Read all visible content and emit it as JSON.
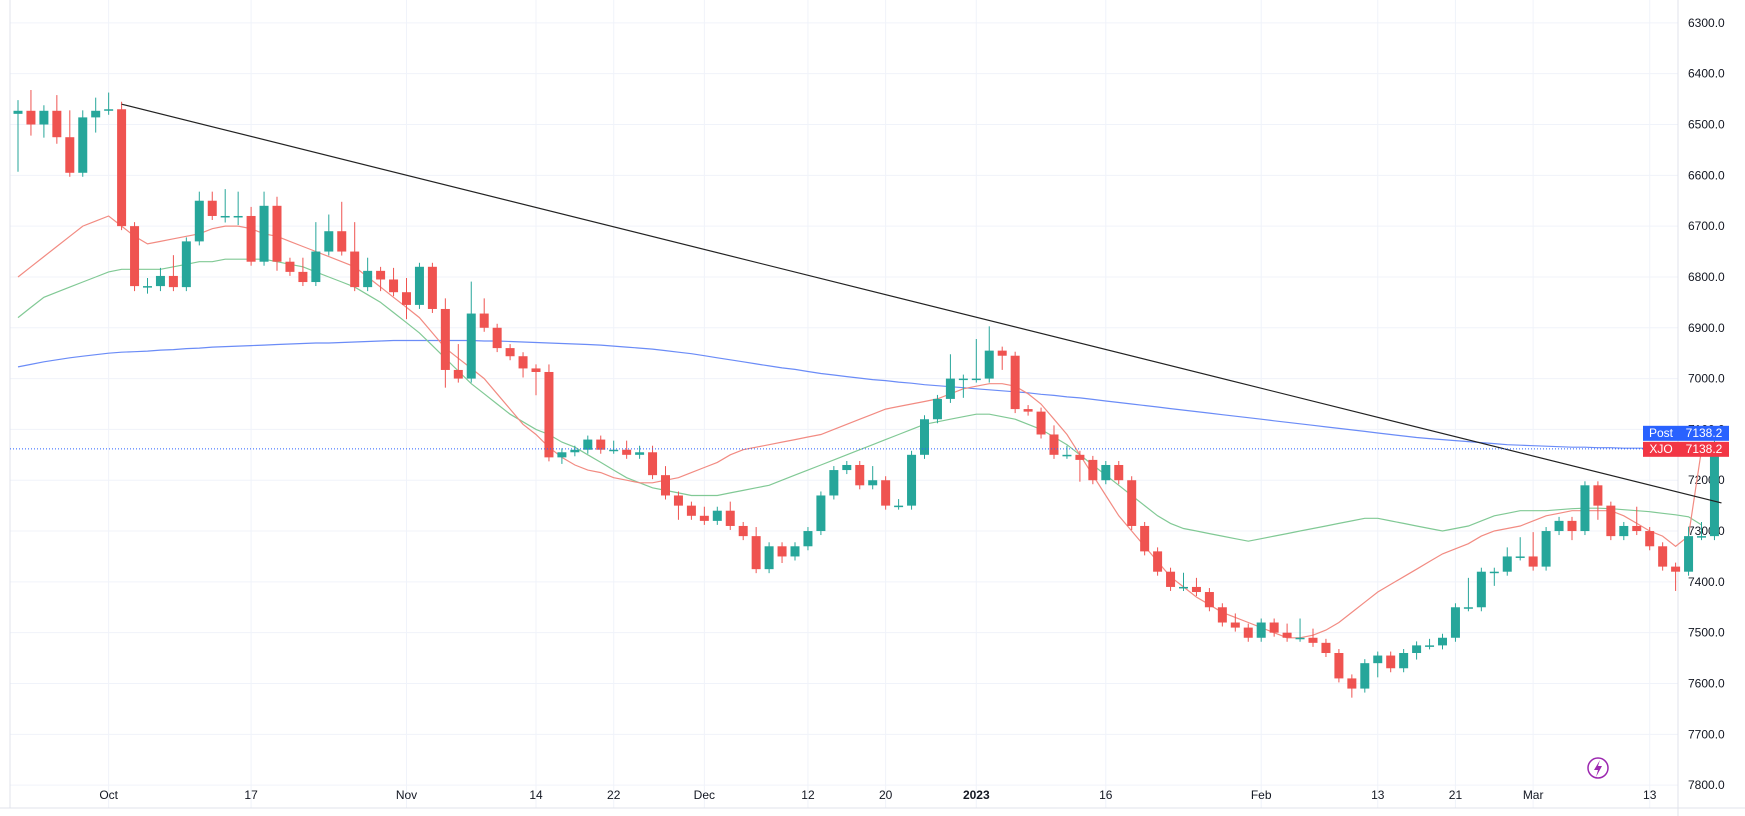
{
  "chart_data": {
    "type": "candlestick",
    "y_axis": {
      "position": "right",
      "inverted": true,
      "range": [
        6255,
        7845
      ],
      "ticks": [
        "6300.0",
        "6400.0",
        "6500.0",
        "6600.0",
        "6700.0",
        "6800.0",
        "6900.0",
        "7000.0",
        "7100.0",
        "7200.0",
        "7300.0",
        "7400.0",
        "7500.0",
        "7600.0",
        "7700.0",
        "7800.0"
      ]
    },
    "x_axis": {
      "ticks": [
        {
          "label": "Oct",
          "index": 7
        },
        {
          "label": "17",
          "index": 18
        },
        {
          "label": "Nov",
          "index": 30
        },
        {
          "label": "14",
          "index": 40
        },
        {
          "label": "22",
          "index": 46
        },
        {
          "label": "Dec",
          "index": 53
        },
        {
          "label": "12",
          "index": 61
        },
        {
          "label": "20",
          "index": 67
        },
        {
          "label": "2023",
          "index": 74,
          "bold": true
        },
        {
          "label": "16",
          "index": 84
        },
        {
          "label": "Feb",
          "index": 96
        },
        {
          "label": "13",
          "index": 105
        },
        {
          "label": "21",
          "index": 111
        },
        {
          "label": "Mar",
          "index": 117
        },
        {
          "label": "13",
          "index": 126
        }
      ]
    },
    "grid": true,
    "colors": {
      "up": "#ef5350",
      "down": "#26a69a",
      "ma_fast": "#f28b82",
      "ma_mid": "#81c995",
      "ma_slow": "#6b8cf7",
      "trendline": "#222222",
      "price_line": "#2962ff"
    },
    "candles": [
      [
        6479,
        6585,
        6460,
        6473
      ],
      [
        6473,
        6514,
        6440,
        6500
      ],
      [
        6500,
        6518,
        6470,
        6473
      ],
      [
        6473,
        6530,
        6450,
        6525
      ],
      [
        6525,
        6592,
        6480,
        6595
      ],
      [
        6595,
        6585,
        6480,
        6486
      ],
      [
        6486,
        6508,
        6455,
        6473
      ],
      [
        6473,
        6463,
        6445,
        6470
      ],
      [
        6470,
        6700,
        6463,
        6700
      ],
      [
        6700,
        6820,
        6700,
        6818
      ],
      [
        6818,
        6825,
        6810,
        6818
      ],
      [
        6818,
        6820,
        6790,
        6798
      ],
      [
        6798,
        6820,
        6765,
        6820
      ],
      [
        6820,
        6730,
        6730,
        6730
      ],
      [
        6730,
        6650,
        6640,
        6650
      ],
      [
        6650,
        6670,
        6640,
        6680
      ],
      [
        6680,
        6685,
        6635,
        6680
      ],
      [
        6680,
        6690,
        6640,
        6680
      ],
      [
        6680,
        6770,
        6670,
        6770
      ],
      [
        6770,
        6650,
        6640,
        6660
      ],
      [
        6660,
        6780,
        6650,
        6770
      ],
      [
        6770,
        6790,
        6770,
        6790
      ],
      [
        6790,
        6790,
        6770,
        6810
      ],
      [
        6810,
        6750,
        6700,
        6750
      ],
      [
        6750,
        6710,
        6685,
        6710
      ],
      [
        6710,
        6700,
        6660,
        6750
      ],
      [
        6750,
        6760,
        6700,
        6820
      ],
      [
        6820,
        6800,
        6770,
        6788
      ],
      [
        6788,
        6820,
        6790,
        6805
      ],
      [
        6805,
        6820,
        6790,
        6830
      ],
      [
        6830,
        6875,
        6810,
        6855
      ],
      [
        6855,
        6780,
        6780,
        6780
      ],
      [
        6780,
        6863,
        6780,
        6863
      ],
      [
        6863,
        7010,
        6850,
        6983
      ],
      [
        6983,
        6990,
        6940,
        7000
      ],
      [
        7000,
        6820,
        6817,
        6872
      ],
      [
        6872,
        6880,
        6850,
        6900
      ],
      [
        6900,
        6930,
        6900,
        6940
      ],
      [
        6940,
        6946,
        6940,
        6956
      ],
      [
        6956,
        6990,
        6990,
        6980
      ],
      [
        6980,
        7025,
        6980,
        6987
      ],
      [
        6987,
        7140,
        6980,
        7155
      ],
      [
        7155,
        7160,
        7145,
        7145
      ],
      [
        7145,
        7140,
        7140,
        7140
      ],
      [
        7140,
        7120,
        7120,
        7120
      ],
      [
        7120,
        7120,
        7120,
        7140
      ],
      [
        7140,
        7130,
        7140,
        7140
      ],
      [
        7140,
        7130,
        7140,
        7150
      ],
      [
        7150,
        7140,
        7145,
        7145
      ],
      [
        7145,
        7160,
        7140,
        7190
      ],
      [
        7190,
        7190,
        7180,
        7230
      ],
      [
        7230,
        7270,
        7240,
        7250
      ],
      [
        7250,
        7260,
        7250,
        7270
      ],
      [
        7270,
        7270,
        7260,
        7280
      ],
      [
        7280,
        7260,
        7260,
        7260
      ],
      [
        7260,
        7250,
        7250,
        7290
      ],
      [
        7290,
        7300,
        7290,
        7310
      ],
      [
        7310,
        7365,
        7300,
        7375
      ],
      [
        7375,
        7335,
        7335,
        7330
      ],
      [
        7330,
        7355,
        7345,
        7350
      ],
      [
        7350,
        7345,
        7330,
        7330
      ],
      [
        7330,
        7300,
        7300,
        7300
      ],
      [
        7300,
        7270,
        7260,
        7230
      ],
      [
        7230,
        7180,
        7180,
        7180
      ],
      [
        7180,
        7180,
        7180,
        7170
      ],
      [
        7170,
        7180,
        7180,
        7210
      ],
      [
        7210,
        7180,
        7180,
        7200
      ],
      [
        7200,
        7240,
        7240,
        7250
      ],
      [
        7250,
        7250,
        7245,
        7250
      ],
      [
        7250,
        7230,
        7210,
        7150
      ],
      [
        7150,
        7090,
        7100,
        7080
      ],
      [
        7080,
        7040,
        7040,
        7040
      ],
      [
        7040,
        6960,
        6960,
        7000
      ],
      [
        7000,
        7030,
        7000,
        7000
      ],
      [
        7000,
        6930,
        6930,
        7000
      ],
      [
        7000,
        6910,
        6905,
        6945
      ],
      [
        6945,
        6975,
        6950,
        6955
      ],
      [
        6955,
        7060,
        7060,
        7060
      ],
      [
        7060,
        7060,
        7065,
        7065
      ],
      [
        7065,
        7090,
        7080,
        7110
      ],
      [
        7110,
        7110,
        7100,
        7150
      ],
      [
        7150,
        7140,
        7150,
        7150
      ],
      [
        7150,
        7195,
        7160,
        7160
      ],
      [
        7160,
        7180,
        7180,
        7200
      ],
      [
        7200,
        7190,
        7180,
        7170
      ],
      [
        7170,
        7200,
        7200,
        7200
      ],
      [
        7200,
        7270,
        7260,
        7290
      ],
      [
        7290,
        7330,
        7330,
        7340
      ],
      [
        7340,
        7370,
        7360,
        7380
      ],
      [
        7380,
        7390,
        7390,
        7410
      ],
      [
        7410,
        7395,
        7390,
        7410
      ],
      [
        7410,
        7400,
        7400,
        7420
      ],
      [
        7420,
        7430,
        7420,
        7450
      ],
      [
        7450,
        7460,
        7450,
        7480
      ],
      [
        7480,
        7470,
        7470,
        7490
      ],
      [
        7490,
        7510,
        7500,
        7510
      ],
      [
        7510,
        7480,
        7490,
        7480
      ],
      [
        7480,
        7500,
        7490,
        7500
      ],
      [
        7500,
        7490,
        7490,
        7510
      ],
      [
        7510,
        7480,
        7480,
        7510
      ],
      [
        7510,
        7500,
        7500,
        7520
      ],
      [
        7520,
        7540,
        7520,
        7540
      ],
      [
        7540,
        7590,
        7590,
        7590
      ],
      [
        7590,
        7620,
        7620,
        7610
      ],
      [
        7610,
        7590,
        7580,
        7560
      ],
      [
        7560,
        7580,
        7570,
        7545
      ],
      [
        7545,
        7570,
        7570,
        7570
      ],
      [
        7570,
        7540,
        7540,
        7540
      ],
      [
        7540,
        7545,
        7540,
        7525
      ],
      [
        7525,
        7525,
        7520,
        7525
      ],
      [
        7525,
        7510,
        7510,
        7510
      ],
      [
        7510,
        7470,
        7470,
        7450
      ],
      [
        7450,
        7400,
        7400,
        7450
      ],
      [
        7450,
        7420,
        7420,
        7380
      ],
      [
        7380,
        7400,
        7400,
        7380
      ],
      [
        7380,
        7340,
        7340,
        7350
      ],
      [
        7350,
        7320,
        7320,
        7350
      ],
      [
        7350,
        7310,
        7310,
        7370
      ],
      [
        7370,
        7300,
        7300,
        7300
      ],
      [
        7300,
        7300,
        7300,
        7280
      ],
      [
        7280,
        7310,
        7300,
        7300
      ],
      [
        7300,
        7300,
        7300,
        7210
      ],
      [
        7210,
        7270,
        7250,
        7250
      ],
      [
        7250,
        7270,
        7260,
        7310
      ],
      [
        7310,
        7290,
        7290,
        7290
      ],
      [
        7290,
        7270,
        7260,
        7300
      ],
      [
        7300,
        7320,
        7310,
        7330
      ],
      [
        7330,
        7340,
        7340,
        7370
      ],
      [
        7370,
        7410,
        7410,
        7380
      ],
      [
        7380,
        7310,
        7300,
        7310
      ],
      [
        7310,
        7290,
        7300,
        7310
      ],
      [
        7310,
        7130,
        7130,
        7138
      ]
    ],
    "ma_fast": [
      6800,
      6780,
      6760,
      6740,
      6720,
      6700,
      6690,
      6680,
      6700,
      6720,
      6735,
      6730,
      6725,
      6720,
      6715,
      6705,
      6700,
      6700,
      6705,
      6715,
      6720,
      6730,
      6740,
      6750,
      6760,
      6770,
      6780,
      6800,
      6820,
      6840,
      6860,
      6880,
      6910,
      6940,
      6960,
      6980,
      7000,
      7030,
      7060,
      7090,
      7110,
      7135,
      7155,
      7170,
      7180,
      7185,
      7195,
      7200,
      7205,
      7205,
      7200,
      7195,
      7185,
      7175,
      7165,
      7150,
      7140,
      7135,
      7130,
      7125,
      7120,
      7115,
      7110,
      7100,
      7090,
      7080,
      7070,
      7060,
      7055,
      7050,
      7045,
      7040,
      7030,
      7020,
      7015,
      7010,
      7010,
      7015,
      7030,
      7050,
      7080,
      7110,
      7150,
      7190,
      7230,
      7270,
      7300,
      7330,
      7360,
      7390,
      7410,
      7430,
      7445,
      7460,
      7470,
      7480,
      7490,
      7500,
      7510,
      7510,
      7505,
      7495,
      7480,
      7460,
      7440,
      7420,
      7405,
      7390,
      7375,
      7360,
      7345,
      7335,
      7325,
      7310,
      7300,
      7295,
      7290,
      7280,
      7270,
      7265,
      7260,
      7260,
      7260,
      7260,
      7270,
      7285,
      7300,
      7310,
      7330,
      7310,
      7140
    ],
    "ma_mid": [
      6880,
      6860,
      6840,
      6830,
      6820,
      6810,
      6800,
      6790,
      6785,
      6785,
      6785,
      6785,
      6780,
      6775,
      6770,
      6770,
      6765,
      6765,
      6765,
      6765,
      6770,
      6775,
      6780,
      6790,
      6800,
      6810,
      6820,
      6835,
      6850,
      6870,
      6890,
      6910,
      6935,
      6960,
      6985,
      7010,
      7030,
      7050,
      7070,
      7085,
      7100,
      7110,
      7125,
      7135,
      7150,
      7165,
      7180,
      7195,
      7205,
      7215,
      7220,
      7225,
      7230,
      7230,
      7230,
      7225,
      7220,
      7215,
      7210,
      7200,
      7190,
      7180,
      7170,
      7160,
      7150,
      7140,
      7130,
      7120,
      7110,
      7100,
      7090,
      7085,
      7080,
      7075,
      7070,
      7070,
      7075,
      7080,
      7090,
      7100,
      7115,
      7130,
      7150,
      7170,
      7190,
      7210,
      7230,
      7250,
      7270,
      7285,
      7295,
      7300,
      7305,
      7310,
      7315,
      7320,
      7315,
      7310,
      7305,
      7300,
      7295,
      7290,
      7285,
      7280,
      7275,
      7275,
      7280,
      7285,
      7290,
      7295,
      7300,
      7295,
      7290,
      7280,
      7270,
      7265,
      7260,
      7260,
      7260,
      7258,
      7256,
      7255,
      7255,
      7256,
      7258,
      7260,
      7262,
      7265,
      7268,
      7272,
      7288
    ],
    "ma_slow": [
      6977,
      6972,
      6967,
      6963,
      6959,
      6956,
      6953,
      6950,
      6948,
      6947,
      6946,
      6944,
      6943,
      6941,
      6940,
      6938,
      6937,
      6936,
      6935,
      6934,
      6933,
      6932,
      6931,
      6930,
      6930,
      6929,
      6928,
      6927,
      6926,
      6925,
      6925,
      6925,
      6925,
      6925,
      6925,
      6925,
      6926,
      6926,
      6927,
      6928,
      6929,
      6930,
      6931,
      6932,
      6933,
      6934,
      6936,
      6938,
      6940,
      6942,
      6945,
      6948,
      6951,
      6955,
      6959,
      6963,
      6967,
      6971,
      6975,
      6979,
      6982,
      6986,
      6990,
      6993,
      6996,
      6999,
      7002,
      7004,
      7007,
      7009,
      7012,
      7014,
      7016,
      7018,
      7020,
      7022,
      7024,
      7026,
      7028,
      7031,
      7033,
      7036,
      7038,
      7041,
      7044,
      7047,
      7050,
      7053,
      7056,
      7059,
      7062,
      7065,
      7068,
      7071,
      7074,
      7077,
      7080,
      7083,
      7086,
      7089,
      7092,
      7095,
      7098,
      7101,
      7104,
      7107,
      7110,
      7113,
      7116,
      7118,
      7120,
      7122,
      7124,
      7126,
      7128,
      7130,
      7131,
      7132,
      7133,
      7134,
      7135,
      7135,
      7136,
      7136,
      7137,
      7137,
      7137,
      7138,
      7138,
      7138,
      7138
    ],
    "trendline": {
      "from": [
        8,
        6460
      ],
      "to": [
        130,
        7231
      ]
    },
    "price_line": 7138.2,
    "labels": [
      {
        "name": "Post",
        "value": "7138.2",
        "color": "#2962ff"
      },
      {
        "name": "XJO",
        "value": "7138.2",
        "color": "#f23645"
      }
    ]
  },
  "icons": {
    "replay": "lightning-icon"
  }
}
